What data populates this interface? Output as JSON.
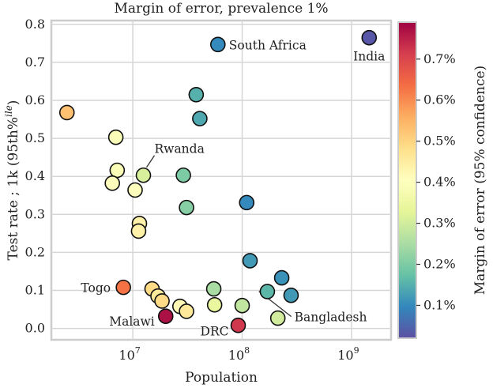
{
  "chart_data": {
    "type": "scatter",
    "title": "Margin of error, prevalence 1%",
    "xlabel": "Population",
    "ylabel": "Test rate ; 1k (95th%",
    "ylabel_sup": "ile",
    "ylabel_end": ")",
    "xscale": "log",
    "xlim": [
      1800000,
      2300000000
    ],
    "ylim": [
      -0.03,
      0.81
    ],
    "xticks": [
      {
        "value": 10000000,
        "base": "10",
        "exp": "7"
      },
      {
        "value": 100000000,
        "base": "10",
        "exp": "8"
      },
      {
        "value": 1000000000,
        "base": "10",
        "exp": "9"
      }
    ],
    "yticks": [
      {
        "value": 0.0,
        "label": "0.0"
      },
      {
        "value": 0.1,
        "label": "0.1"
      },
      {
        "value": 0.2,
        "label": "0.2"
      },
      {
        "value": 0.3,
        "label": "0.3"
      },
      {
        "value": 0.4,
        "label": "0.4"
      },
      {
        "value": 0.5,
        "label": "0.5"
      },
      {
        "value": 0.6,
        "label": "0.6"
      },
      {
        "value": 0.7,
        "label": "0.7"
      },
      {
        "value": 0.8,
        "label": "0.8"
      }
    ],
    "grid": true,
    "colorbar": {
      "label": "Margin of error (95% confidence)",
      "colormap": "Spectral_r",
      "range": [
        0.0002,
        0.0079
      ],
      "ticks": [
        {
          "value": 0.001,
          "label": "0.1%"
        },
        {
          "value": 0.002,
          "label": "0.2%"
        },
        {
          "value": 0.003,
          "label": "0.3%"
        },
        {
          "value": 0.004,
          "label": "0.4%"
        },
        {
          "value": 0.005,
          "label": "0.5%"
        },
        {
          "value": 0.006,
          "label": "0.6%"
        },
        {
          "value": 0.007,
          "label": "0.7%"
        }
      ]
    },
    "points": [
      {
        "population": 1450000000,
        "rate": 0.765,
        "moe": 0.0003,
        "label": "India"
      },
      {
        "population": 60000000,
        "rate": 0.747,
        "moe": 0.001,
        "label": "South Africa"
      },
      {
        "population": 2500000,
        "rate": 0.568,
        "moe": 0.0053,
        "label": ""
      },
      {
        "population": 38000000,
        "rate": 0.615,
        "moe": 0.0015,
        "label": ""
      },
      {
        "population": 41000000,
        "rate": 0.552,
        "moe": 0.0014,
        "label": ""
      },
      {
        "population": 7000000,
        "rate": 0.503,
        "moe": 0.0039,
        "label": ""
      },
      {
        "population": 7200000,
        "rate": 0.416,
        "moe": 0.0039,
        "label": ""
      },
      {
        "population": 6500000,
        "rate": 0.382,
        "moe": 0.0041,
        "label": ""
      },
      {
        "population": 12500000,
        "rate": 0.403,
        "moe": 0.0031,
        "label": "Rwanda"
      },
      {
        "population": 29000000,
        "rate": 0.403,
        "moe": 0.002,
        "label": ""
      },
      {
        "population": 10500000,
        "rate": 0.364,
        "moe": 0.004,
        "label": ""
      },
      {
        "population": 110000000,
        "rate": 0.331,
        "moe": 0.001,
        "label": ""
      },
      {
        "population": 31000000,
        "rate": 0.318,
        "moe": 0.0021,
        "label": ""
      },
      {
        "population": 11500000,
        "rate": 0.276,
        "moe": 0.0044,
        "label": ""
      },
      {
        "population": 11300000,
        "rate": 0.256,
        "moe": 0.0044,
        "label": ""
      },
      {
        "population": 118000000,
        "rate": 0.178,
        "moe": 0.0012,
        "label": ""
      },
      {
        "population": 230000000,
        "rate": 0.133,
        "moe": 0.0011,
        "label": ""
      },
      {
        "population": 55000000,
        "rate": 0.104,
        "moe": 0.0025,
        "label": ""
      },
      {
        "population": 8200000,
        "rate": 0.108,
        "moe": 0.0063,
        "label": "Togo"
      },
      {
        "population": 15000000,
        "rate": 0.104,
        "moe": 0.0049,
        "label": ""
      },
      {
        "population": 17000000,
        "rate": 0.085,
        "moe": 0.0046,
        "label": ""
      },
      {
        "population": 170000000,
        "rate": 0.097,
        "moe": 0.0016,
        "label": ""
      },
      {
        "population": 280000000,
        "rate": 0.087,
        "moe": 0.0012,
        "label": ""
      },
      {
        "population": 18500000,
        "rate": 0.072,
        "moe": 0.0049,
        "label": ""
      },
      {
        "population": 56000000,
        "rate": 0.062,
        "moe": 0.0034,
        "label": ""
      },
      {
        "population": 100000000,
        "rate": 0.06,
        "moe": 0.0028,
        "label": ""
      },
      {
        "population": 27000000,
        "rate": 0.058,
        "moe": 0.0042,
        "label": ""
      },
      {
        "population": 31000000,
        "rate": 0.045,
        "moe": 0.0046,
        "label": ""
      },
      {
        "population": 20000000,
        "rate": 0.032,
        "moe": 0.0077,
        "label": "Malawi"
      },
      {
        "population": 212000000,
        "rate": 0.027,
        "moe": 0.003,
        "label": "Bangladesh"
      },
      {
        "population": 92000000,
        "rate": 0.008,
        "moe": 0.0072,
        "label": "DRC"
      }
    ]
  }
}
